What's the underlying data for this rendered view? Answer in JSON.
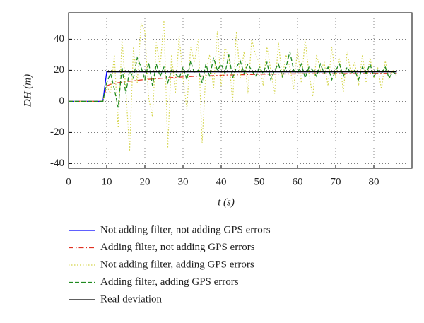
{
  "chart_data": {
    "type": "line",
    "xlabel": "t (s)",
    "ylabel": "DH (m)",
    "x": [
      0,
      1,
      2,
      3,
      4,
      5,
      6,
      7,
      8,
      9,
      10,
      11,
      12,
      13,
      14,
      15,
      16,
      17,
      18,
      19,
      20,
      21,
      22,
      23,
      24,
      25,
      26,
      27,
      28,
      29,
      30,
      31,
      32,
      33,
      34,
      35,
      36,
      37,
      38,
      39,
      40,
      41,
      42,
      43,
      44,
      45,
      46,
      47,
      48,
      49,
      50,
      51,
      52,
      53,
      54,
      55,
      56,
      57,
      58,
      59,
      60,
      61,
      62,
      63,
      64,
      65,
      66,
      67,
      68,
      69,
      70,
      71,
      72,
      73,
      74,
      75,
      76,
      77,
      78,
      79,
      80,
      81,
      82,
      83,
      84,
      85,
      86
    ],
    "series": [
      {
        "name": "Not adding filter, not adding GPS errors",
        "color": "#0000ff",
        "style": "solid",
        "values": [
          0,
          0,
          0,
          0,
          0,
          0,
          0,
          0,
          0,
          0,
          19,
          19,
          19,
          19,
          19,
          19,
          19,
          19,
          19,
          19,
          19,
          19,
          19,
          19,
          19,
          19,
          19,
          19,
          19,
          19,
          19,
          19,
          19,
          19,
          19,
          19,
          19,
          19,
          19,
          19,
          19,
          19,
          19,
          19,
          19,
          19,
          19,
          19,
          19,
          19,
          19,
          19,
          19,
          19,
          19,
          19,
          19,
          19,
          19,
          19,
          19,
          19,
          19,
          19,
          19,
          19,
          19,
          19,
          19,
          19,
          19,
          19,
          19,
          19,
          19,
          19,
          19,
          19,
          19,
          19,
          19,
          19,
          19,
          19,
          19,
          19,
          19
        ]
      },
      {
        "name": "Adding filter, not adding GPS errors",
        "color": "#e03020",
        "style": "dashdot",
        "values": [
          0,
          0,
          0,
          0,
          0,
          0,
          0,
          0,
          0,
          0,
          10,
          11,
          11.5,
          12,
          12.3,
          12.6,
          13,
          13.2,
          13.5,
          13.8,
          14,
          14.2,
          14.4,
          14.6,
          14.8,
          15,
          15.1,
          15.3,
          15.4,
          15.6,
          15.7,
          15.8,
          16,
          16.1,
          16.2,
          16.3,
          16.4,
          16.5,
          16.6,
          16.7,
          16.8,
          16.9,
          17,
          17,
          17.1,
          17.2,
          17.2,
          17.3,
          17.3,
          17.4,
          17.5,
          17.5,
          17.5,
          17.6,
          17.6,
          17.6,
          17.7,
          17.7,
          17.7,
          17.7,
          17.8,
          17.8,
          17.8,
          17.8,
          17.8,
          17.8,
          17.8,
          17.8,
          17.8,
          17.8,
          17.9,
          17.9,
          17.9,
          17.9,
          17.9,
          17.9,
          17.9,
          17.9,
          17.9,
          17.9,
          18,
          18,
          18,
          18,
          18,
          18,
          18
        ]
      },
      {
        "name": "Not adding filter, adding GPS errors",
        "color": "#d4d44a",
        "style": "dotted",
        "values": [
          0,
          0,
          0,
          0,
          0,
          0,
          0,
          0,
          0,
          0,
          10,
          5,
          30,
          -18,
          40,
          8,
          -32,
          35,
          12,
          50,
          45,
          2,
          -10,
          38,
          22,
          52,
          -30,
          30,
          5,
          42,
          15,
          -5,
          35,
          25,
          40,
          -27,
          20,
          30,
          8,
          45,
          10,
          35,
          28,
          0,
          45,
          15,
          32,
          5,
          40,
          30,
          25,
          10,
          35,
          20,
          5,
          38,
          15,
          30,
          22,
          8,
          34,
          12,
          40,
          18,
          3,
          30,
          20,
          25,
          10,
          35,
          15,
          28,
          6,
          32,
          18,
          25,
          10,
          30,
          12,
          28,
          15,
          22,
          8,
          26,
          14,
          20,
          16
        ]
      },
      {
        "name": "Adding filter, adding GPS errors",
        "color": "#1f8a1f",
        "style": "dashed",
        "values": [
          0,
          0,
          0,
          0,
          0,
          0,
          0,
          0,
          0,
          0,
          12,
          18,
          8,
          -4,
          22,
          5,
          20,
          15,
          28,
          22,
          14,
          25,
          10,
          24,
          16,
          22,
          12,
          20,
          18,
          15,
          22,
          14,
          26,
          18,
          20,
          12,
          24,
          16,
          28,
          20,
          24,
          18,
          30,
          15,
          22,
          26,
          18,
          24,
          20,
          16,
          22,
          18,
          25,
          14,
          20,
          24,
          16,
          22,
          32,
          20,
          18,
          24,
          15,
          22,
          20,
          16,
          24,
          18,
          22,
          14,
          20,
          24,
          16,
          22,
          18,
          20,
          14,
          22,
          18,
          24,
          16,
          20,
          18,
          22,
          15,
          19,
          17
        ]
      },
      {
        "name": "Real deviation",
        "color": "#000000",
        "style": "solid",
        "values": [
          null,
          null,
          null,
          null,
          null,
          null,
          null,
          null,
          null,
          null,
          19,
          19,
          19,
          19,
          19,
          19,
          19,
          19,
          19,
          19,
          19,
          19,
          19,
          19,
          19,
          19,
          19,
          19,
          19,
          19,
          19,
          19,
          19,
          19,
          19,
          19,
          19,
          19,
          19,
          19,
          19,
          19,
          19,
          19,
          19,
          19,
          19,
          19,
          19,
          19,
          19,
          19,
          19,
          19,
          19,
          19,
          19,
          19,
          19,
          19,
          19,
          19,
          19,
          19,
          19,
          19,
          19,
          19,
          19,
          19,
          19,
          19,
          19,
          19,
          19,
          19,
          19,
          19,
          19,
          19,
          19,
          19,
          19,
          19,
          19,
          19,
          19
        ]
      }
    ],
    "xlim": [
      0,
      90
    ],
    "ylim": [
      -43,
      57
    ],
    "xticks": [
      0,
      10,
      20,
      30,
      40,
      50,
      60,
      70,
      80
    ],
    "yticks": [
      -40,
      -20,
      0,
      20,
      40
    ],
    "grid": true,
    "legend": "below"
  }
}
